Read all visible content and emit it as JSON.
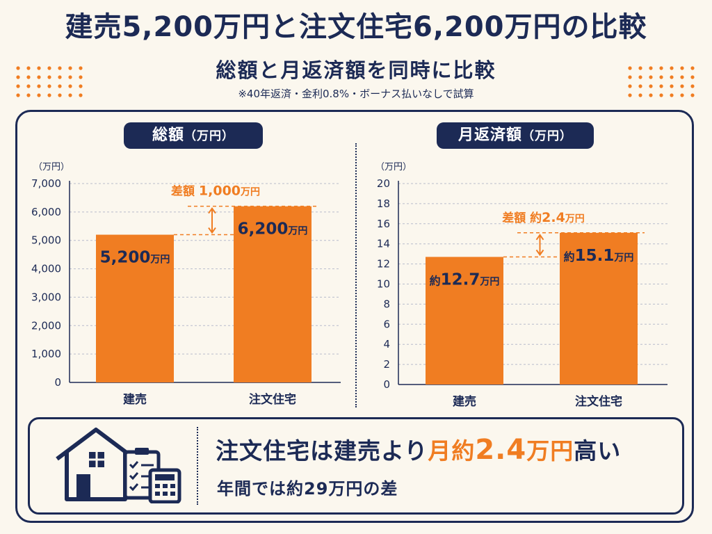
{
  "header": {
    "title": "建売5,200万円と注文住宅6,200万円の比較",
    "subtitle": "総額と月返済額を同時に比較",
    "note": "※40年返済・金利0.8%・ボーナス払いなしで試算"
  },
  "colors": {
    "navy": "#1c2a55",
    "orange": "#f07d22",
    "background": "#fbf7ee"
  },
  "chart_data": [
    {
      "type": "bar",
      "title": "総額",
      "title_unit": "（万円）",
      "unit_label": "（万円）",
      "categories": [
        "建売",
        "注文住宅"
      ],
      "values": [
        5200,
        6200
      ],
      "value_labels": [
        {
          "prefix": "",
          "number": "5,200",
          "unit": "万円"
        },
        {
          "prefix": "",
          "number": "6,200",
          "unit": "万円"
        }
      ],
      "ylim": [
        0,
        7000
      ],
      "yticks": [
        0,
        1000,
        2000,
        3000,
        4000,
        5000,
        6000,
        7000
      ],
      "ytick_labels": [
        "0",
        "1,000",
        "2,000",
        "3,000",
        "4,000",
        "5,000",
        "6,000",
        "7,000"
      ],
      "grid": true,
      "diff_annotation": {
        "label": "差額",
        "prefix": "",
        "number": "1,000",
        "unit": "万円"
      }
    },
    {
      "type": "bar",
      "title": "月返済額",
      "title_unit": "（万円）",
      "unit_label": "（万円）",
      "categories": [
        "建売",
        "注文住宅"
      ],
      "values": [
        12.7,
        15.1
      ],
      "value_labels": [
        {
          "prefix": "約",
          "number": "12.7",
          "unit": "万円"
        },
        {
          "prefix": "約",
          "number": "15.1",
          "unit": "万円"
        }
      ],
      "ylim": [
        0,
        20
      ],
      "yticks": [
        0,
        2,
        4,
        6,
        8,
        10,
        12,
        14,
        16,
        18,
        20
      ],
      "ytick_labels": [
        "0",
        "2",
        "4",
        "6",
        "8",
        "10",
        "12",
        "14",
        "16",
        "18",
        "20"
      ],
      "grid": true,
      "diff_annotation": {
        "label": "差額",
        "prefix": "約",
        "number": "2.4",
        "unit": "万円"
      }
    }
  ],
  "summary": {
    "line1_prefix": "注文住宅は建売より",
    "line1_accent_a": "月約",
    "line1_accent_b": "2.4",
    "line1_accent_c": "万円",
    "line1_suffix": "高い",
    "line2": "年間では約29万円の差",
    "icons": [
      "house-icon",
      "checklist-icon",
      "calculator-icon"
    ]
  }
}
